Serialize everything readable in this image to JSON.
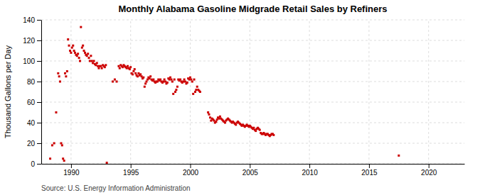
{
  "chart_data": {
    "type": "scatter",
    "title": "Monthly Alabama Gasoline Midgrade Retail Sales by Refiners",
    "ylabel": "Thousand Gallons per Day",
    "source": "Source: U.S. Energy Information Administration",
    "color": "#cc0000",
    "marker": "square",
    "grid": true,
    "xlim": [
      1987.5,
      2023
    ],
    "ylim": [
      0,
      140
    ],
    "xticks": [
      1990,
      1995,
      2000,
      2005,
      2010,
      2015,
      2020
    ],
    "yticks": [
      0,
      20,
      40,
      60,
      80,
      100,
      120,
      140
    ],
    "x": [
      1988.25,
      1988.42,
      1988.58,
      1988.75,
      1988.92,
      1989.0,
      1989.08,
      1989.17,
      1989.25,
      1989.33,
      1989.42,
      1989.5,
      1989.58,
      1989.67,
      1989.75,
      1989.83,
      1989.92,
      1990.0,
      1990.08,
      1990.17,
      1990.25,
      1990.33,
      1990.42,
      1990.5,
      1990.58,
      1990.67,
      1990.75,
      1990.83,
      1990.92,
      1991.0,
      1991.08,
      1991.17,
      1991.25,
      1991.33,
      1991.42,
      1991.5,
      1991.58,
      1991.67,
      1991.75,
      1991.83,
      1991.92,
      1992.0,
      1992.08,
      1992.17,
      1992.25,
      1992.33,
      1992.42,
      1992.5,
      1992.58,
      1992.67,
      1992.75,
      1992.83,
      1992.92,
      1993.0,
      1993.5,
      1993.67,
      1993.83,
      1994.0,
      1994.08,
      1994.17,
      1994.25,
      1994.33,
      1994.42,
      1994.5,
      1994.58,
      1994.67,
      1994.75,
      1994.83,
      1994.92,
      1995.0,
      1995.08,
      1995.17,
      1995.25,
      1995.33,
      1995.42,
      1995.5,
      1995.58,
      1995.67,
      1995.75,
      1995.83,
      1995.92,
      1996.0,
      1996.08,
      1996.17,
      1996.25,
      1996.33,
      1996.42,
      1996.5,
      1996.58,
      1996.67,
      1996.75,
      1996.83,
      1996.92,
      1997.0,
      1997.08,
      1997.17,
      1997.25,
      1997.33,
      1997.42,
      1997.5,
      1997.58,
      1997.67,
      1997.75,
      1997.83,
      1997.92,
      1998.0,
      1998.08,
      1998.17,
      1998.25,
      1998.33,
      1998.42,
      1998.5,
      1998.58,
      1998.67,
      1998.75,
      1998.83,
      1998.92,
      1999.0,
      1999.08,
      1999.17,
      1999.25,
      1999.33,
      1999.42,
      1999.5,
      1999.58,
      1999.67,
      1999.75,
      1999.83,
      1999.92,
      2000.0,
      2000.08,
      2000.17,
      2000.25,
      2000.33,
      2000.42,
      2000.5,
      2000.58,
      2000.67,
      2000.75,
      2000.83,
      2001.5,
      2001.58,
      2001.67,
      2001.75,
      2001.83,
      2001.92,
      2002.0,
      2002.08,
      2002.17,
      2002.25,
      2002.33,
      2002.42,
      2002.5,
      2002.58,
      2002.67,
      2002.75,
      2002.83,
      2002.92,
      2003.0,
      2003.08,
      2003.17,
      2003.25,
      2003.33,
      2003.42,
      2003.5,
      2003.58,
      2003.67,
      2003.75,
      2003.83,
      2003.92,
      2004.0,
      2004.08,
      2004.17,
      2004.25,
      2004.33,
      2004.42,
      2004.5,
      2004.58,
      2004.67,
      2004.75,
      2004.83,
      2004.92,
      2005.0,
      2005.08,
      2005.17,
      2005.25,
      2005.33,
      2005.42,
      2005.5,
      2005.58,
      2005.67,
      2005.75,
      2005.83,
      2005.92,
      2006.0,
      2006.08,
      2006.17,
      2006.25,
      2006.33,
      2006.42,
      2006.5,
      2006.58,
      2006.67,
      2006.75,
      2006.83,
      2006.92,
      2007.0,
      2017.5
    ],
    "values": [
      5.0,
      18.0,
      20.0,
      50.0,
      88.0,
      85.0,
      80.0,
      20.0,
      18.0,
      5.0,
      3.0,
      88.0,
      85.0,
      90.0,
      121.0,
      115.0,
      110.0,
      108.0,
      113.0,
      115.0,
      110.0,
      108.0,
      106.0,
      105.0,
      107.0,
      103.0,
      100.0,
      133.0,
      113.0,
      115.0,
      110.0,
      108.0,
      106.0,
      105.0,
      107.0,
      103.0,
      100.0,
      105.0,
      100.0,
      98.0,
      100.0,
      97.0,
      96.0,
      98.0,
      95.0,
      93.0,
      95.0,
      95.0,
      93.0,
      96.0,
      95.0,
      94.0,
      96.0,
      1.0,
      80.0,
      82.0,
      80.0,
      95.0,
      93.0,
      96.0,
      95.0,
      94.0,
      96.0,
      95.0,
      94.0,
      93.0,
      95.0,
      93.0,
      92.0,
      94.0,
      88.0,
      87.0,
      90.0,
      92.0,
      88.0,
      86.0,
      85.0,
      88.0,
      86.0,
      87.0,
      85.0,
      83.0,
      84.0,
      75.0,
      78.0,
      80.0,
      82.0,
      84.0,
      83.0,
      85.0,
      82.0,
      81.0,
      82.0,
      80.0,
      79.0,
      80.0,
      80.0,
      82.0,
      81.0,
      82.0,
      80.0,
      79.0,
      80.0,
      82.0,
      80.0,
      78.0,
      79.0,
      83.0,
      82.0,
      84.0,
      82.0,
      80.0,
      68.0,
      82.0,
      70.0,
      72.0,
      75.0,
      82.0,
      81.0,
      82.0,
      80.0,
      79.0,
      80.0,
      82.0,
      80.0,
      78.0,
      79.0,
      83.0,
      82.0,
      84.0,
      82.0,
      80.0,
      68.0,
      82.0,
      70.0,
      72.0,
      75.0,
      72.0,
      71.0,
      70.0,
      50.0,
      48.0,
      45.0,
      42.0,
      44.0,
      43.0,
      42.0,
      40.0,
      41.0,
      43.0,
      45.0,
      44.0,
      46.0,
      44.0,
      43.0,
      42.0,
      41.0,
      40.0,
      42.0,
      43.0,
      44.0,
      43.0,
      42.0,
      41.0,
      40.0,
      41.0,
      40.0,
      39.0,
      38.0,
      40.0,
      41.0,
      40.0,
      39.0,
      38.0,
      37.0,
      38.0,
      37.0,
      36.0,
      37.0,
      38.0,
      37.0,
      36.0,
      37.0,
      36.0,
      35.0,
      34.0,
      35.0,
      33.0,
      32.0,
      34.0,
      35.0,
      34.0,
      33.0,
      30.0,
      29.0,
      29.0,
      30.0,
      29.0,
      28.0,
      29.0,
      29.0,
      28.0,
      27.0,
      28.0,
      29.0,
      29.0,
      28.0,
      8.0
    ]
  }
}
